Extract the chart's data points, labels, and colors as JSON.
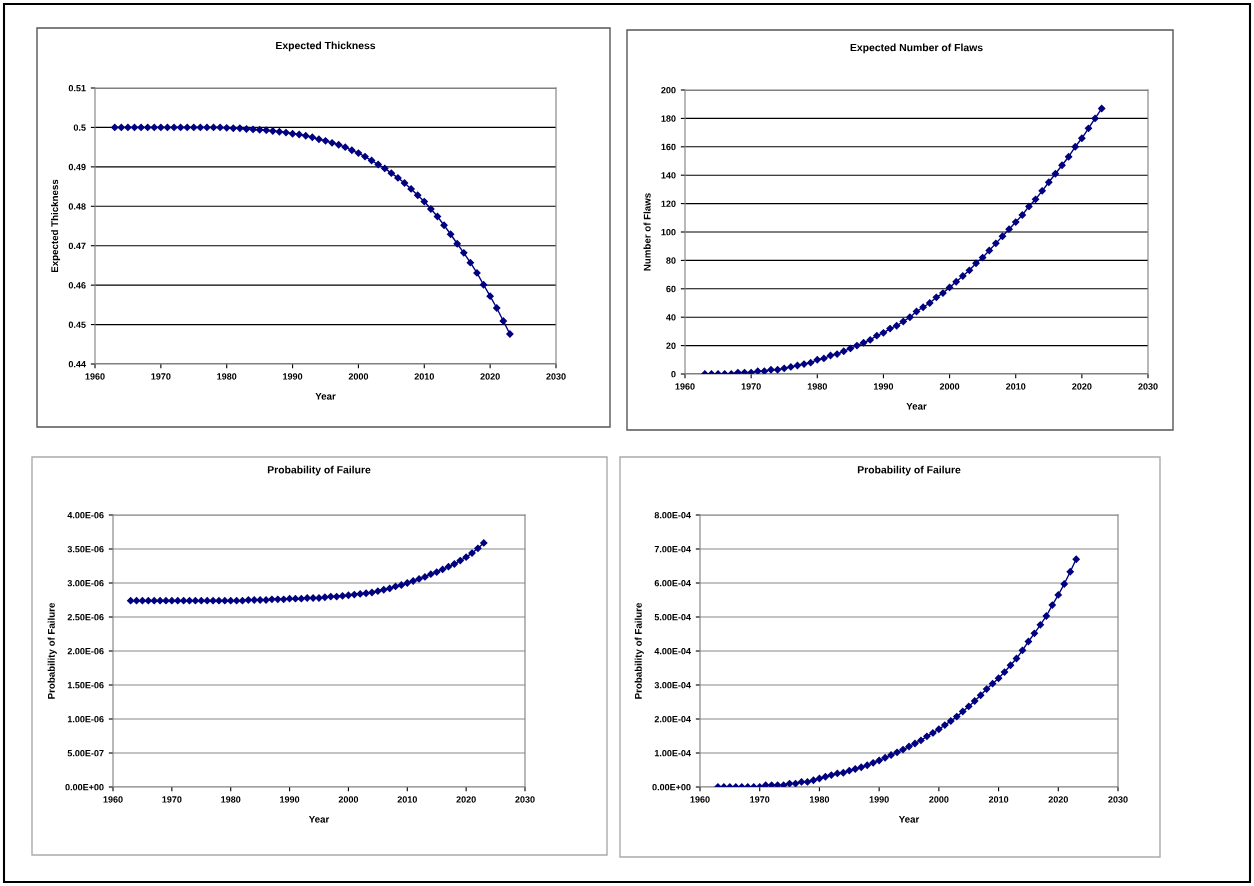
{
  "chart_data": [
    {
      "type": "line",
      "title": "Expected Thickness",
      "xlabel": "Year",
      "ylabel": "Expected Thickness",
      "marker": "diamond",
      "line_style": "solid",
      "grid": "y",
      "xlim": [
        1960,
        2030
      ],
      "xticks": [
        1960,
        1970,
        1980,
        1990,
        2000,
        2010,
        2020,
        2030
      ],
      "ylim": [
        0.44,
        0.51
      ],
      "yticks": [
        0.44,
        0.45,
        0.46,
        0.47,
        0.48,
        0.49,
        0.5,
        0.51
      ],
      "x": [
        1963,
        1964,
        1965,
        1966,
        1967,
        1968,
        1969,
        1970,
        1971,
        1972,
        1973,
        1974,
        1975,
        1976,
        1977,
        1978,
        1979,
        1980,
        1981,
        1982,
        1983,
        1984,
        1985,
        1986,
        1987,
        1988,
        1989,
        1990,
        1991,
        1992,
        1993,
        1994,
        1995,
        1996,
        1997,
        1998,
        1999,
        2000,
        2001,
        2002,
        2003,
        2004,
        2005,
        2006,
        2007,
        2008,
        2009,
        2010,
        2011,
        2012,
        2013,
        2014,
        2015,
        2016,
        2017,
        2018,
        2019,
        2020,
        2021,
        2022,
        2023
      ],
      "series": [
        {
          "color": "#000080",
          "values": [
            0.5,
            0.5,
            0.5,
            0.5,
            0.5,
            0.5,
            0.5,
            0.5,
            0.5,
            0.5,
            0.5,
            0.5,
            0.5,
            0.5,
            0.5,
            0.5,
            0.5,
            0.4999,
            0.4998,
            0.4998,
            0.4996,
            0.4995,
            0.4994,
            0.4993,
            0.4991,
            0.4989,
            0.4987,
            0.4984,
            0.4982,
            0.4979,
            0.4975,
            0.497,
            0.4966,
            0.4961,
            0.4956,
            0.495,
            0.4942,
            0.4935,
            0.4926,
            0.4916,
            0.4906,
            0.4896,
            0.4884,
            0.4872,
            0.4859,
            0.4844,
            0.4828,
            0.4812,
            0.4793,
            0.4774,
            0.4752,
            0.4729,
            0.4705,
            0.4682,
            0.4657,
            0.4631,
            0.4601,
            0.4572,
            0.4542,
            0.4509,
            0.4476
          ]
        }
      ]
    },
    {
      "type": "line",
      "title": "Expected Number of Flaws",
      "xlabel": "Year",
      "ylabel": "Number of Flaws",
      "marker": "diamond",
      "line_style": "solid",
      "grid": "y",
      "xlim": [
        1960,
        2030
      ],
      "xticks": [
        1960,
        1970,
        1980,
        1990,
        2000,
        2010,
        2020,
        2030
      ],
      "ylim": [
        0,
        200
      ],
      "yticks": [
        0,
        20,
        40,
        60,
        80,
        100,
        120,
        140,
        160,
        180,
        200
      ],
      "x": [
        1963,
        1964,
        1965,
        1966,
        1967,
        1968,
        1969,
        1970,
        1971,
        1972,
        1973,
        1974,
        1975,
        1976,
        1977,
        1978,
        1979,
        1980,
        1981,
        1982,
        1983,
        1984,
        1985,
        1986,
        1987,
        1988,
        1989,
        1990,
        1991,
        1992,
        1993,
        1994,
        1995,
        1996,
        1997,
        1998,
        1999,
        2000,
        2001,
        2002,
        2003,
        2004,
        2005,
        2006,
        2007,
        2008,
        2009,
        2010,
        2011,
        2012,
        2013,
        2014,
        2015,
        2016,
        2017,
        2018,
        2019,
        2020,
        2021,
        2022,
        2023
      ],
      "series": [
        {
          "color": "#000080",
          "values": [
            0,
            0,
            0,
            0,
            0,
            1,
            1,
            1,
            2,
            2,
            3,
            3,
            4,
            5,
            6,
            7,
            8,
            10,
            11,
            13,
            14,
            16,
            18,
            20,
            22,
            24,
            27,
            29,
            32,
            34,
            37,
            40,
            44,
            47,
            50,
            54,
            57,
            61,
            65,
            69,
            73,
            78,
            82,
            87,
            92,
            97,
            102,
            107,
            112,
            118,
            123,
            129,
            135,
            141,
            147,
            153,
            160,
            166,
            173,
            180,
            187
          ]
        }
      ]
    },
    {
      "type": "line",
      "title": "Probability of Failure",
      "xlabel": "Year",
      "ylabel": "Probability of Failure",
      "marker": "diamond",
      "line_style": "solid",
      "grid": "y",
      "xlim": [
        1960,
        2030
      ],
      "xticks": [
        1960,
        1970,
        1980,
        1990,
        2000,
        2010,
        2020,
        2030
      ],
      "ylim": [
        0,
        4e-06
      ],
      "yticks": [
        {
          "value": 0,
          "label": "0.00E+00"
        },
        {
          "value": 5e-07,
          "label": "5.00E-07"
        },
        {
          "value": 1e-06,
          "label": "1.00E-06"
        },
        {
          "value": 1.5e-06,
          "label": "1.50E-06"
        },
        {
          "value": 2e-06,
          "label": "2.00E-06"
        },
        {
          "value": 2.5e-06,
          "label": "2.50E-06"
        },
        {
          "value": 3e-06,
          "label": "3.00E-06"
        },
        {
          "value": 3.5e-06,
          "label": "3.50E-06"
        },
        {
          "value": 4e-06,
          "label": "4.00E-06"
        }
      ],
      "x": [
        1963,
        1964,
        1965,
        1966,
        1967,
        1968,
        1969,
        1970,
        1971,
        1972,
        1973,
        1974,
        1975,
        1976,
        1977,
        1978,
        1979,
        1980,
        1981,
        1982,
        1983,
        1984,
        1985,
        1986,
        1987,
        1988,
        1989,
        1990,
        1991,
        1992,
        1993,
        1994,
        1995,
        1996,
        1997,
        1998,
        1999,
        2000,
        2001,
        2002,
        2003,
        2004,
        2005,
        2006,
        2007,
        2008,
        2009,
        2010,
        2011,
        2012,
        2013,
        2014,
        2015,
        2016,
        2017,
        2018,
        2019,
        2020,
        2021,
        2022,
        2023
      ],
      "series": [
        {
          "color": "#000080",
          "values": [
            2.74e-06,
            2.74e-06,
            2.74e-06,
            2.74e-06,
            2.74e-06,
            2.74e-06,
            2.74e-06,
            2.74e-06,
            2.74e-06,
            2.74e-06,
            2.74e-06,
            2.74e-06,
            2.74e-06,
            2.74e-06,
            2.74e-06,
            2.74e-06,
            2.74e-06,
            2.74e-06,
            2.74e-06,
            2.74e-06,
            2.75e-06,
            2.75e-06,
            2.75e-06,
            2.75e-06,
            2.76e-06,
            2.76e-06,
            2.76e-06,
            2.77e-06,
            2.77e-06,
            2.77e-06,
            2.78e-06,
            2.78e-06,
            2.78e-06,
            2.79e-06,
            2.8e-06,
            2.8e-06,
            2.81e-06,
            2.82e-06,
            2.83e-06,
            2.84e-06,
            2.85e-06,
            2.86e-06,
            2.88e-06,
            2.9e-06,
            2.92e-06,
            2.95e-06,
            2.97e-06,
            3e-06,
            3.03e-06,
            3.06e-06,
            3.09e-06,
            3.13e-06,
            3.16e-06,
            3.2e-06,
            3.24e-06,
            3.28e-06,
            3.33e-06,
            3.38e-06,
            3.44e-06,
            3.51e-06,
            3.59e-06
          ]
        }
      ]
    },
    {
      "type": "line",
      "title": "Probability of Failure",
      "xlabel": "Year",
      "ylabel": "Probability of Failure",
      "marker": "diamond",
      "line_style": "solid",
      "grid": "y",
      "xlim": [
        1960,
        2030
      ],
      "xticks": [
        1960,
        1970,
        1980,
        1990,
        2000,
        2010,
        2020,
        2030
      ],
      "ylim": [
        0,
        0.0008
      ],
      "yticks": [
        {
          "value": 0,
          "label": "0.00E+00"
        },
        {
          "value": 0.0001,
          "label": "1.00E-04"
        },
        {
          "value": 0.0002,
          "label": "2.00E-04"
        },
        {
          "value": 0.0003,
          "label": "3.00E-04"
        },
        {
          "value": 0.0004,
          "label": "4.00E-04"
        },
        {
          "value": 0.0005,
          "label": "5.00E-04"
        },
        {
          "value": 0.0006,
          "label": "6.00E-04"
        },
        {
          "value": 0.0007,
          "label": "7.00E-04"
        },
        {
          "value": 0.0008,
          "label": "8.00E-04"
        }
      ],
      "x": [
        1963,
        1964,
        1965,
        1966,
        1967,
        1968,
        1969,
        1970,
        1971,
        1972,
        1973,
        1974,
        1975,
        1976,
        1977,
        1978,
        1979,
        1980,
        1981,
        1982,
        1983,
        1984,
        1985,
        1986,
        1987,
        1988,
        1989,
        1990,
        1991,
        1992,
        1993,
        1994,
        1995,
        1996,
        1997,
        1998,
        1999,
        2000,
        2001,
        2002,
        2003,
        2004,
        2005,
        2006,
        2007,
        2008,
        2009,
        2010,
        2011,
        2012,
        2013,
        2014,
        2015,
        2016,
        2017,
        2018,
        2019,
        2020,
        2021,
        2022,
        2023
      ],
      "series": [
        {
          "color": "#000080",
          "values": [
            0,
            0,
            0,
            0,
            0,
            0,
            0,
            0,
            5e-06,
            5e-06,
            5e-06,
            5e-06,
            1e-05,
            1e-05,
            1.5e-05,
            1.5e-05,
            2e-05,
            2.5e-05,
            3e-05,
            3.5e-05,
            4e-05,
            4.2e-05,
            4.8e-05,
            5.3e-05,
            5.8e-05,
            6.4e-05,
            7.1e-05,
            7.8e-05,
            8.6e-05,
            9.4e-05,
            0.000102,
            0.00011,
            0.000119,
            0.000128,
            0.000137,
            0.000149,
            0.000159,
            0.00017,
            0.000182,
            0.000194,
            0.000207,
            0.000222,
            0.000237,
            0.000253,
            0.00027,
            0.000288,
            0.000304,
            0.00032,
            0.000338,
            0.000358,
            0.000378,
            0.000402,
            0.000428,
            0.000452,
            0.000477,
            0.000503,
            0.000535,
            0.000565,
            0.000597,
            0.000633,
            0.00067
          ]
        }
      ]
    }
  ]
}
